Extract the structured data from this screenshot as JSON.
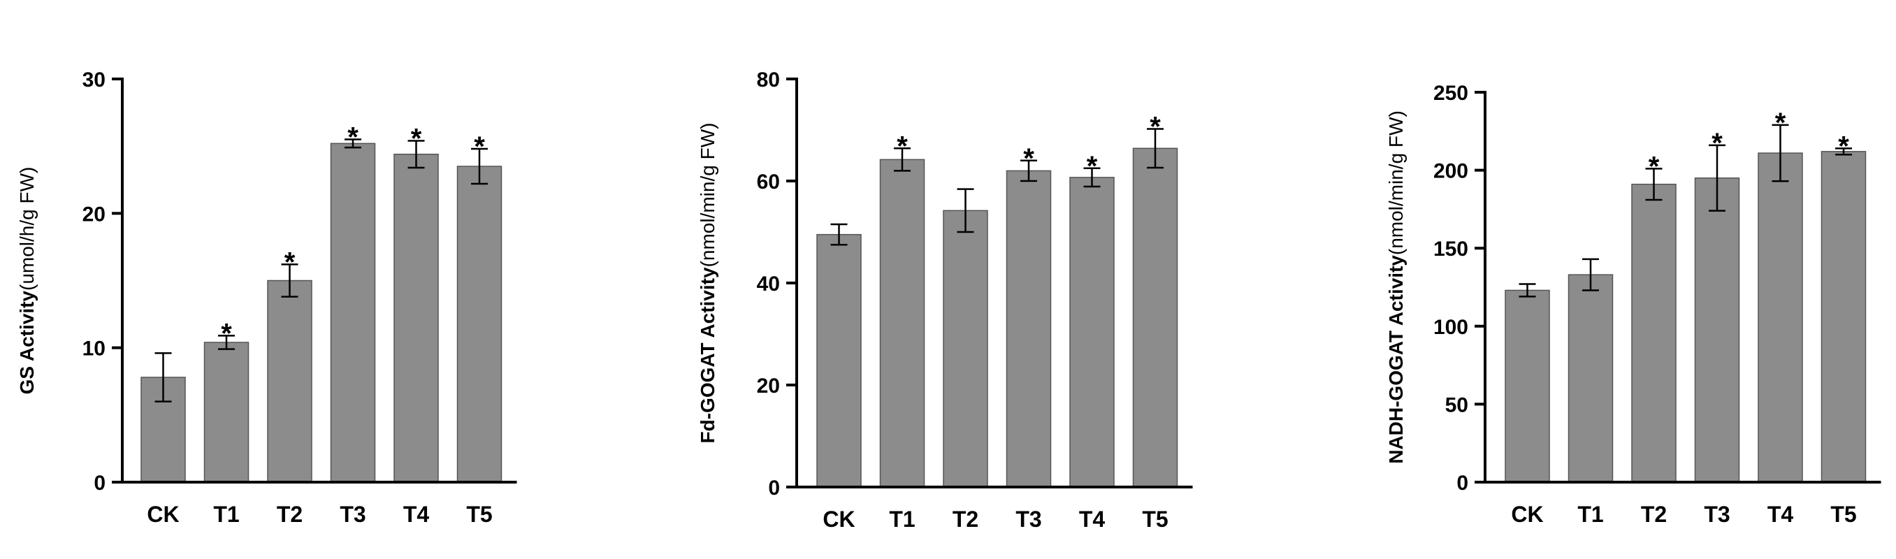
{
  "chart_data": [
    {
      "type": "bar",
      "ylabel_main": "GS Activity",
      "ylabel_unit": "(umol/h/g FW)",
      "categories": [
        "CK",
        "T1",
        "T2",
        "T3",
        "T4",
        "T5"
      ],
      "values": [
        7.8,
        10.4,
        15.0,
        25.2,
        24.4,
        23.5
      ],
      "errors": [
        1.8,
        0.5,
        1.2,
        0.3,
        1.0,
        1.3
      ],
      "significant": [
        "",
        "*",
        "*",
        "*",
        "*",
        "*"
      ],
      "ylim": [
        0,
        30
      ],
      "yticks": [
        0,
        10,
        20,
        30
      ]
    },
    {
      "type": "bar",
      "ylabel_main": "Fd-GOGAT Activity",
      "ylabel_unit": "(nmol/min/g FW)",
      "categories": [
        "CK",
        "T1",
        "T2",
        "T3",
        "T4",
        "T5"
      ],
      "values": [
        49.5,
        64.2,
        54.2,
        62.0,
        60.7,
        66.4
      ],
      "errors": [
        2.0,
        2.2,
        4.2,
        2.0,
        1.8,
        3.8
      ],
      "significant": [
        "",
        "*",
        "",
        "*",
        "*",
        "*"
      ],
      "ylim": [
        0,
        80
      ],
      "yticks": [
        0,
        20,
        40,
        60,
        80
      ]
    },
    {
      "type": "bar",
      "ylabel_main": "NADH-GOGAT Activity",
      "ylabel_unit": "(nmol/min/g FW)",
      "categories": [
        "CK",
        "T1",
        "T2",
        "T3",
        "T4",
        "T5"
      ],
      "values": [
        123,
        133,
        191,
        195,
        211,
        212
      ],
      "errors": [
        4,
        10,
        10,
        21,
        18,
        2
      ],
      "significant": [
        "",
        "",
        "*",
        "*",
        "*",
        "*"
      ],
      "ylim": [
        0,
        250
      ],
      "yticks": [
        0,
        50,
        100,
        150,
        200,
        250
      ]
    }
  ]
}
